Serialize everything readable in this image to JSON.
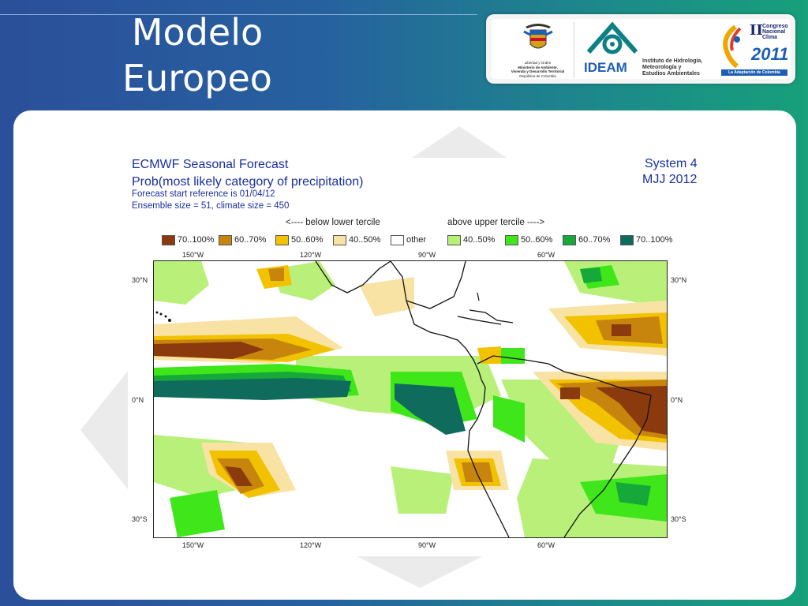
{
  "slide": {
    "title_line1": "Modelo",
    "title_line2": "Europeo"
  },
  "logos": {
    "ministry": {
      "line1": "Libertad y Orden",
      "line2": "Ministerio de Ambiente,",
      "line3": "Vivienda y Desarrollo Territorial",
      "line4": "República de Colombia"
    },
    "ideam": {
      "name": "IDEAM",
      "line1": "Instituto de Hidrología,",
      "line2": "Meteorología y",
      "line3": "Estudios Ambientales"
    },
    "congreso": {
      "roman": "II",
      "line1": "Congreso",
      "line2": "Nacional",
      "line3": "Clima",
      "year": "2011",
      "tagline": "La Adaptación de Colombia"
    }
  },
  "forecast": {
    "title": "ECMWF Seasonal Forecast",
    "subtitle": "Prob(most likely category of precipitation)",
    "start_ref": "Forecast start reference is 01/04/12",
    "ensemble": "Ensemble size = 51, climate size = 450",
    "system": "System 4",
    "period": "MJJ 2012",
    "below_label": "<---- below lower tercile",
    "above_label": "above upper tercile ---->"
  },
  "legend": [
    {
      "label": "70..100%",
      "color": "#8b3a0e"
    },
    {
      "label": "60..70%",
      "color": "#c7850d"
    },
    {
      "label": "50..60%",
      "color": "#f2c200"
    },
    {
      "label": "40..50%",
      "color": "#f8e3a4"
    },
    {
      "label": "other",
      "color": "#ffffff"
    },
    {
      "label": "40..50%",
      "color": "#b9f07a"
    },
    {
      "label": "50..60%",
      "color": "#3ee61a"
    },
    {
      "label": "60..70%",
      "color": "#17a83a"
    },
    {
      "label": "70..100%",
      "color": "#0f6b5c"
    }
  ],
  "axes": {
    "lon_top": [
      "150°W",
      "120°W",
      "90°W",
      "60°W"
    ],
    "lon_bottom": [
      "150°W",
      "120°W",
      "90°W",
      "60°W"
    ],
    "lat_left": [
      "30°N",
      "0°N",
      "30°S"
    ],
    "lat_right": [
      "30°N",
      "0°N",
      "30°S"
    ]
  }
}
